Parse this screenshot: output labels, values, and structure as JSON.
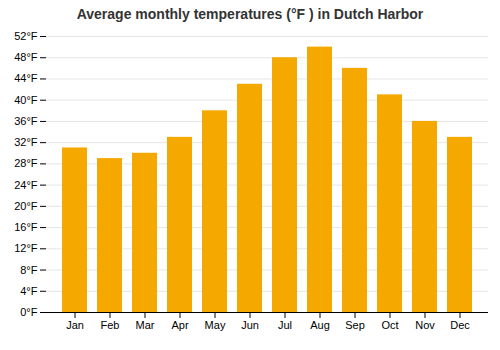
{
  "chart_data": {
    "type": "bar",
    "title": "Average monthly temperatures (°F ) in Dutch Harbor",
    "categories": [
      "Jan",
      "Feb",
      "Mar",
      "Apr",
      "May",
      "Jun",
      "Jul",
      "Aug",
      "Sep",
      "Oct",
      "Nov",
      "Dec"
    ],
    "values": [
      31,
      29,
      30,
      33,
      38,
      43,
      48,
      50,
      46,
      41,
      36,
      33
    ],
    "color": "#F5A800",
    "ylim": [
      0,
      52
    ],
    "yticks": [
      {
        "value": 0,
        "label": "0°F"
      },
      {
        "value": 4,
        "label": "4°F"
      },
      {
        "value": 8,
        "label": "8°F"
      },
      {
        "value": 12,
        "label": "12°F"
      },
      {
        "value": 16,
        "label": "16°F"
      },
      {
        "value": 20,
        "label": "20°F"
      },
      {
        "value": 24,
        "label": "24°F"
      },
      {
        "value": 28,
        "label": "28°F"
      },
      {
        "value": 32,
        "label": "32°F"
      },
      {
        "value": 36,
        "label": "36°F"
      },
      {
        "value": 40,
        "label": "40°F"
      },
      {
        "value": 44,
        "label": "44°F"
      },
      {
        "value": 48,
        "label": "48°F"
      },
      {
        "value": 52,
        "label": "52°F"
      }
    ],
    "grid": true
  }
}
